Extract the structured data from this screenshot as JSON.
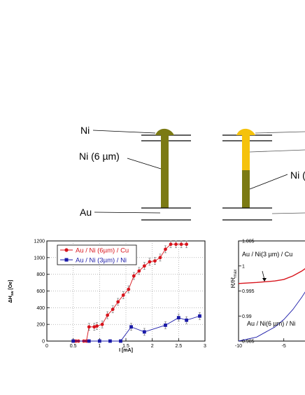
{
  "colors": {
    "olive": "#7b7a13",
    "gold": "#f5c20c",
    "red": "#d8141c",
    "blue": "#1a1aa8",
    "line": "#000000",
    "grid": "#777777"
  },
  "diagram": {
    "left": {
      "top_label": "Ni",
      "mid_label": "Ni (6 µm)",
      "bottom_label": "Au"
    },
    "right": {
      "mid_label": "Ni ("
    }
  },
  "chart_data": [
    {
      "type": "line",
      "title": "",
      "xlabel": "I [mA]",
      "ylabel": "ΔH_sw [Oe]",
      "ylabel_main": "ΔH",
      "ylabel_sub": "sw",
      "ylabel_unit": "[Oe]",
      "xlim": [
        0,
        3
      ],
      "ylim": [
        0,
        1200
      ],
      "xticks": [
        "0",
        "0.5",
        "1",
        "1.5",
        "2",
        "2.5",
        "3"
      ],
      "yticks": [
        "0",
        "200",
        "400",
        "600",
        "800",
        "1000",
        "1200"
      ],
      "legend_position": "top-left",
      "series": [
        {
          "name": "Au / Ni (6µm) / Cu",
          "marker": "circle",
          "x": [
            0.5,
            0.55,
            0.6,
            0.7,
            0.75,
            0.8,
            0.9,
            0.95,
            1.05,
            1.15,
            1.25,
            1.35,
            1.45,
            1.55,
            1.65,
            1.75,
            1.85,
            1.95,
            2.05,
            2.15,
            2.25,
            2.35,
            2.45,
            2.55,
            2.65
          ],
          "y": [
            0,
            0,
            0,
            0,
            0,
            170,
            170,
            180,
            200,
            310,
            380,
            470,
            550,
            620,
            780,
            840,
            900,
            950,
            960,
            1000,
            1100,
            1160,
            1160,
            1160,
            1160
          ]
        },
        {
          "name": "Au / Ni (3µm) / Ni",
          "marker": "square",
          "x": [
            0.5,
            0.8,
            1.0,
            1.2,
            1.4,
            1.6,
            1.85,
            2.25,
            2.5,
            2.65,
            2.9
          ],
          "y": [
            0,
            0,
            0,
            0,
            0,
            170,
            110,
            190,
            280,
            250,
            300
          ]
        }
      ]
    },
    {
      "type": "line",
      "title": "",
      "xlabel": "",
      "ylabel": "R/R_max",
      "ylabel_main": "R/R",
      "ylabel_sub": "max",
      "xlim": [
        -10,
        -1.5
      ],
      "ylim": [
        0.985,
        1.005
      ],
      "xticks": [
        "-10",
        "-5"
      ],
      "yticks": [
        "0.985",
        "0.99",
        "0.995",
        "1",
        "1.005"
      ],
      "annotations": [
        "Au / Ni(3 µm) / Cu",
        "Au / Ni(6 µm) / Ni"
      ],
      "series": [
        {
          "name": "Au / Ni(3 µm) / Cu",
          "x": [
            -10,
            -8,
            -6,
            -5,
            -4,
            -3,
            -2,
            -1.5
          ],
          "y": [
            0.9965,
            0.9967,
            0.997,
            0.9973,
            0.998,
            0.999,
            1.0003,
            1.0012
          ]
        },
        {
          "name": "Au / Ni(6 µm) / Ni",
          "x": [
            -10,
            -8,
            -6,
            -5,
            -4,
            -3,
            -2.4,
            -2.2,
            -2.0,
            -1.8,
            -1.5
          ],
          "y": [
            0.985,
            0.9858,
            0.9878,
            0.9893,
            0.9913,
            0.9938,
            0.9955,
            0.9985,
            0.9992,
            0.9998,
            1.0004
          ]
        }
      ]
    }
  ]
}
